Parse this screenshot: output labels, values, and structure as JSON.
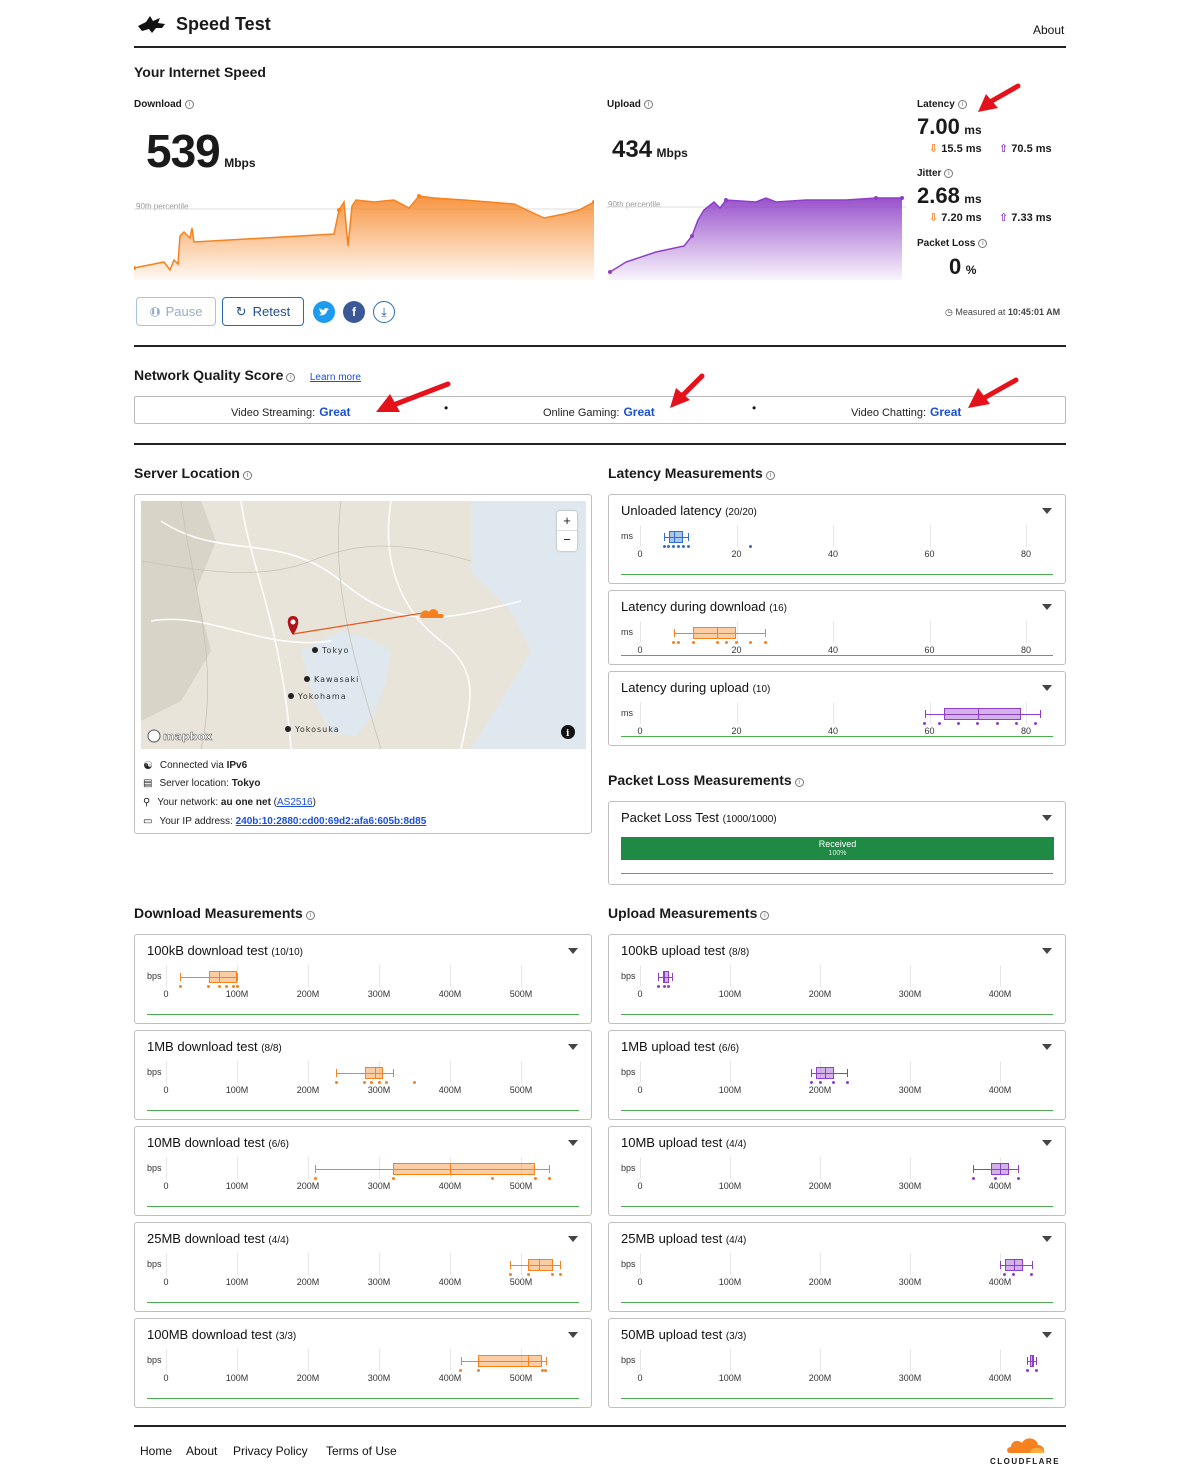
{
  "header": {
    "title": "Speed Test",
    "about": "About"
  },
  "summary": {
    "heading": "Your Internet Speed",
    "download": {
      "label": "Download",
      "value": "539",
      "unit": "Mbps",
      "percentile": "90th percentile"
    },
    "upload": {
      "label": "Upload",
      "value": "434",
      "unit": "Mbps",
      "percentile": "90th percentile"
    },
    "latency": {
      "label": "Latency",
      "value": "7.00",
      "unit": "ms",
      "down": "15.5 ms",
      "up": "70.5 ms"
    },
    "jitter": {
      "label": "Jitter",
      "value": "2.68",
      "unit": "ms",
      "down": "7.20 ms",
      "up": "7.33 ms"
    },
    "packet_loss": {
      "label": "Packet Loss",
      "value": "0",
      "unit": "%"
    },
    "pause": "Pause",
    "retest": "Retest",
    "measured_prefix": "Measured at",
    "measured_time": "10:45:01 AM"
  },
  "nqs": {
    "heading": "Network Quality Score",
    "learn_more": "Learn more",
    "streaming_label": "Video Streaming:",
    "streaming_value": "Great",
    "gaming_label": "Online Gaming:",
    "gaming_value": "Great",
    "chatting_label": "Video Chatting:",
    "chatting_value": "Great"
  },
  "server": {
    "heading": "Server Location",
    "map_labels": {
      "tokyo": "Tokyo",
      "kawasaki": "Kawasaki",
      "yokohama": "Yokohama",
      "yokosuka": "Yokosuka",
      "mapbox": "mapbox"
    },
    "connected_prefix": "Connected via",
    "connected_value": "IPv6",
    "location_prefix": "Server location:",
    "location_value": "Tokyo",
    "network_prefix": "Your network:",
    "network_value": "au one net",
    "network_asn": "AS2516",
    "ip_prefix": "Your IP address:",
    "ip_value": "240b:10:2880:cd00:69d2:afa6:605b:8d85"
  },
  "latency_meas": {
    "heading": "Latency Measurements",
    "unit": "ms",
    "ticks": [
      "0",
      "20",
      "40",
      "60",
      "80"
    ],
    "cards": [
      {
        "title": "Unloaded latency",
        "count": "(20/20)"
      },
      {
        "title": "Latency during download",
        "count": "(16)"
      },
      {
        "title": "Latency during upload",
        "count": "(10)"
      }
    ]
  },
  "packet_meas": {
    "heading": "Packet Loss Measurements",
    "card_title": "Packet Loss Test",
    "count": "(1000/1000)",
    "bar_label": "Received",
    "bar_pct": "100%"
  },
  "download_meas": {
    "heading": "Download Measurements",
    "unit": "bps",
    "ticks": [
      "0",
      "100M",
      "200M",
      "300M",
      "400M",
      "500M"
    ],
    "cards": [
      {
        "title": "100kB download test",
        "count": "(10/10)"
      },
      {
        "title": "1MB download test",
        "count": "(8/8)"
      },
      {
        "title": "10MB download test",
        "count": "(6/6)"
      },
      {
        "title": "25MB download test",
        "count": "(4/4)"
      },
      {
        "title": "100MB download test",
        "count": "(3/3)"
      }
    ]
  },
  "upload_meas": {
    "heading": "Upload Measurements",
    "unit": "bps",
    "ticks": [
      "0",
      "100M",
      "200M",
      "300M",
      "400M"
    ],
    "cards": [
      {
        "title": "100kB upload test",
        "count": "(8/8)"
      },
      {
        "title": "1MB upload test",
        "count": "(6/6)"
      },
      {
        "title": "10MB upload test",
        "count": "(4/4)"
      },
      {
        "title": "25MB upload test",
        "count": "(4/4)"
      },
      {
        "title": "50MB upload test",
        "count": "(3/3)"
      }
    ]
  },
  "footer": {
    "home": "Home",
    "about": "About",
    "privacy": "Privacy Policy",
    "terms": "Terms of Use",
    "brand": "CLOUDFLARE"
  },
  "colors": {
    "download": "#f6821f",
    "upload": "#8e3fc6",
    "unloaded": "#2f6fce",
    "accent": "#1a4fd6",
    "green": "#1e8a44",
    "arrow": "#e3121b"
  }
}
